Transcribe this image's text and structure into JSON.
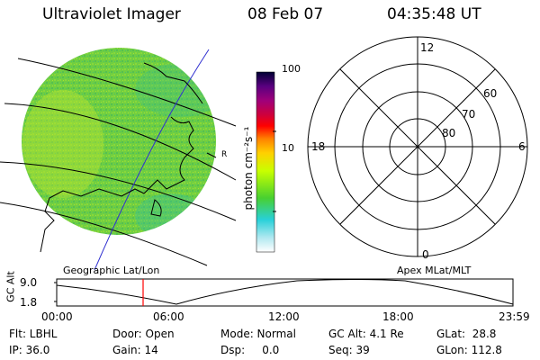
{
  "header": {
    "instrument": "Ultraviolet Imager",
    "date": "08 Feb 07",
    "time": "04:35:48 UT"
  },
  "colorbar": {
    "unit_label": "photon cm⁻²s⁻¹",
    "ticks": [
      {
        "label": "100",
        "value": 100
      },
      {
        "label": "10",
        "value": 10
      }
    ],
    "colors": [
      "#000033",
      "#1a0033",
      "#5a0080",
      "#a0007a",
      "#d0003a",
      "#ff0000",
      "#ff8000",
      "#ffd000",
      "#c8ff00",
      "#48d030",
      "#28d0d8",
      "#b0e8f0",
      "#ffffff"
    ]
  },
  "geo_panel": {
    "caption": "Geographic Lat/Lon",
    "image_color": "#6fce42"
  },
  "polar_panel": {
    "caption": "Apex MLat/MLT",
    "mlt_labels": {
      "top": "12",
      "bottom": "0",
      "left": "18",
      "right": "6"
    },
    "lat_labels": [
      "60",
      "70",
      "80"
    ]
  },
  "altitude_plot": {
    "ylabel": "GC Alt",
    "yticks": [
      "9.0",
      "1.8"
    ],
    "xticks": [
      "00:00",
      "06:00",
      "12:00",
      "18:00",
      "23:59"
    ],
    "marker_color": "#ff0000"
  },
  "footer": {
    "row1": {
      "flt": "Flt: LBHL",
      "door": "Door: Open",
      "mode": "Mode: Normal",
      "gcalt": "GC Alt: 4.1 Re",
      "glat": "GLat:  28.8"
    },
    "row2": {
      "ip": "IP: 36.0",
      "gain": "Gain: 14",
      "dsp": "Dsp:     0.0",
      "seq": "Seq: 39",
      "glon": "GLon: 112.8"
    }
  }
}
